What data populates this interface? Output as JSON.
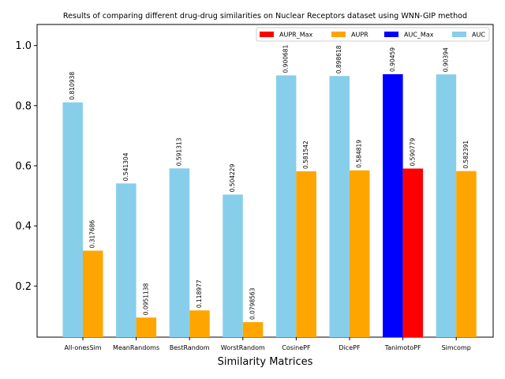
{
  "chart_data": {
    "type": "bar",
    "title": "Results of comparing different drug-drug similarities on Nuclear Receptors dataset using WNN-GIP method",
    "xlabel": "Similarity Matrices",
    "ylabel": "",
    "ylim": [
      0.03,
      1.07
    ],
    "yticks": [
      0.2,
      0.4,
      0.6,
      0.8,
      1.0
    ],
    "ytick_labels": [
      "0.2",
      "0.4",
      "0.6",
      "0.8",
      "1.0"
    ],
    "categories": [
      "All-onesSim",
      "MeanRandoms",
      "BestRandom",
      "WorstRandom",
      "CosinePF",
      "DicePF",
      "TanimotoPF",
      "Simcomp"
    ],
    "series": [
      {
        "name": "AUC",
        "color": "#87ceeb",
        "values": [
          0.810938,
          0.541304,
          0.591313,
          0.504229,
          0.900681,
          0.898618,
          0.90459,
          0.90394
        ],
        "labels": [
          "0.810938",
          "0.541304",
          "0.591313",
          "0.504229",
          "0.900681",
          "0.898618",
          "0.90459",
          "0.90394"
        ]
      },
      {
        "name": "AUPR",
        "color": "#ffa500",
        "values": [
          0.317686,
          0.0951138,
          0.118977,
          0.0798563,
          0.581542,
          0.584819,
          0.590779,
          0.582391
        ],
        "labels": [
          "0.317686",
          "0.0951138",
          "0.118977",
          "0.0798563",
          "0.581542",
          "0.584819",
          "0.590779",
          "0.582391"
        ]
      }
    ],
    "highlight": {
      "category_index": 6,
      "auc_max_color": "#0000ff",
      "aupr_max_color": "#ff0000"
    },
    "legend": {
      "placement": "top-right",
      "entries": [
        {
          "name": "AUPR_Max",
          "color": "#ff0000"
        },
        {
          "name": "AUPR",
          "color": "#ffa500"
        },
        {
          "name": "AUC_Max",
          "color": "#0000ff"
        },
        {
          "name": "AUC",
          "color": "#87ceeb"
        }
      ]
    },
    "grid": false
  }
}
